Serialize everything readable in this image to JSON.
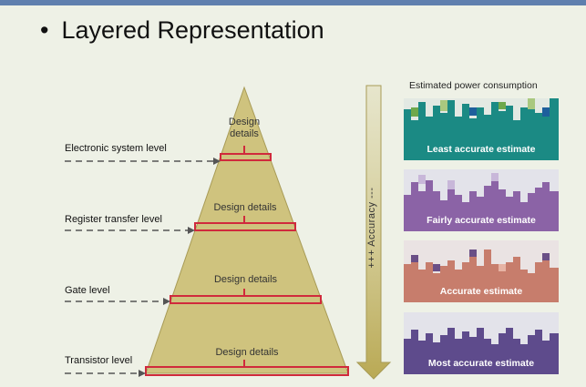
{
  "slide": {
    "bullet": "•",
    "title": "Layered Representation"
  },
  "levels": [
    {
      "label": "Electronic system level"
    },
    {
      "label": "Register transfer level"
    },
    {
      "label": "Gate level"
    },
    {
      "label": "Transistor level"
    }
  ],
  "pyramid": {
    "design_details_label": "Design details",
    "top_label_line1": "Design",
    "top_label_line2": "details",
    "fill_color": "#cfc37e",
    "bar_color": "#d02a3c"
  },
  "accuracy_axis": {
    "label": "+++  Accuracy  ---"
  },
  "power_panel": {
    "heading": "Estimated power consumption",
    "panels": [
      {
        "label": "Least accurate estimate",
        "color": "#1b8a84"
      },
      {
        "label": "Fairly accurate estimate",
        "color": "#8b63a6"
      },
      {
        "label": "Accurate estimate",
        "color": "#c77d6c"
      },
      {
        "label": "Most accurate estimate",
        "color": "#5e4b8c"
      }
    ]
  }
}
